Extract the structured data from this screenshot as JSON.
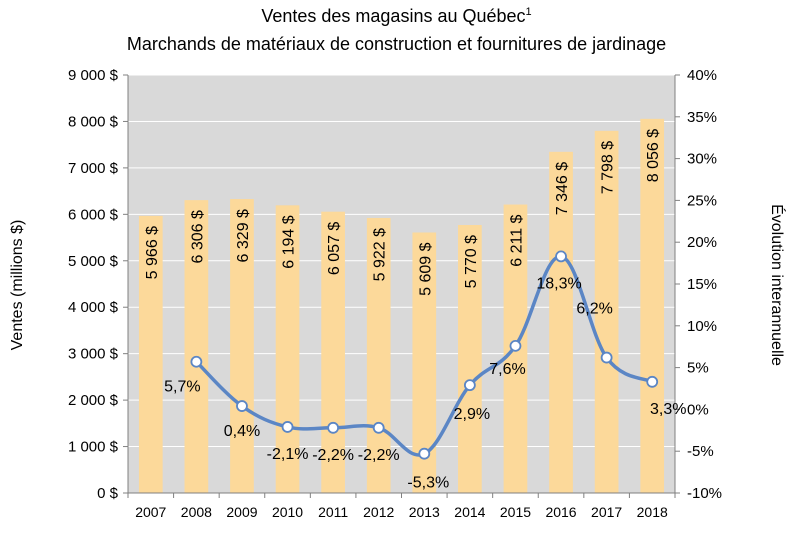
{
  "chart_data": {
    "type": "bar",
    "title": "Ventes des magasins au Québec",
    "title_superscript": "1",
    "subtitle": "Marchands de matériaux de construction et fournitures de jardinage",
    "ylabel": "Ventes (millions $)",
    "y2label": "Évolution interannuelle",
    "ylim": [
      0,
      9000
    ],
    "y2lim": [
      -10,
      40
    ],
    "grid": true,
    "categories": [
      "2007",
      "2008",
      "2009",
      "2010",
      "2011",
      "2012",
      "2013",
      "2014",
      "2015",
      "2016",
      "2017",
      "2018"
    ],
    "y_ticks": [
      "0 $",
      "1 000 $",
      "2 000 $",
      "3 000 $",
      "4 000 $",
      "5 000 $",
      "6 000 $",
      "7 000 $",
      "8 000 $",
      "9 000 $"
    ],
    "y2_ticks": [
      "-10%",
      "-5%",
      "0%",
      "5%",
      "10%",
      "15%",
      "20%",
      "25%",
      "30%",
      "35%",
      "40%"
    ],
    "series": [
      {
        "type": "bar",
        "axis": "left",
        "color": "#fcd99a",
        "values": [
          5966,
          6306,
          6329,
          6194,
          6057,
          5922,
          5609,
          5770,
          6211,
          7346,
          7798,
          8056
        ],
        "labels": [
          "5 966 $",
          "6 306 $",
          "6 329 $",
          "6 194 $",
          "6 057 $",
          "5 922 $",
          "5 609 $",
          "5 770 $",
          "6 211 $",
          "7 346 $",
          "7 798 $",
          "8 056 $"
        ]
      },
      {
        "type": "line",
        "axis": "right",
        "color": "#5b86c5",
        "values": [
          null,
          5.7,
          0.4,
          -2.1,
          -2.2,
          -2.2,
          -5.3,
          2.9,
          7.6,
          18.3,
          6.2,
          3.3
        ],
        "labels": [
          "",
          "5,7%",
          "0,4%",
          "-2,1%",
          "-2,2%",
          "-2,2%",
          "-5,3%",
          "2,9%",
          "7,6%",
          "18,3%",
          "6,2%",
          "3,3%"
        ]
      }
    ]
  }
}
